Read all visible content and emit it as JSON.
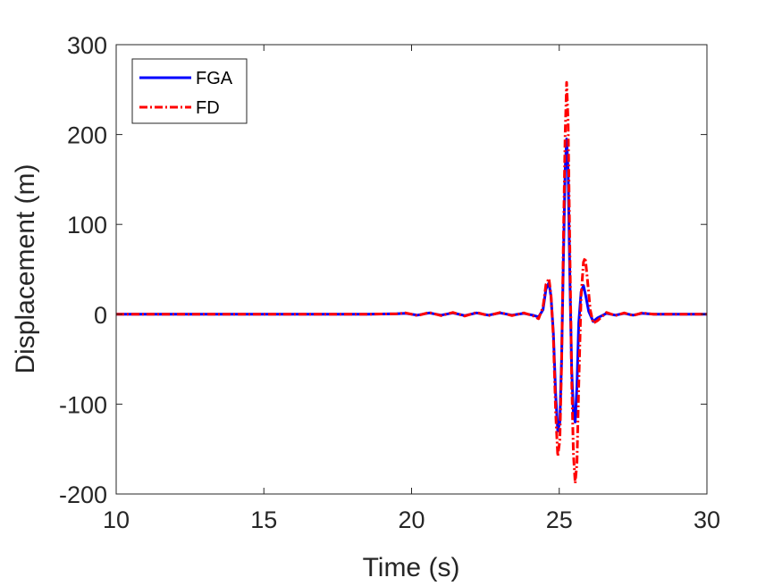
{
  "chart_data": {
    "type": "line",
    "title": "",
    "xlabel": "Time (s)",
    "ylabel": "Displacement (m)",
    "xlim": [
      10,
      30
    ],
    "ylim": [
      -200,
      300
    ],
    "xticks": [
      "10",
      "15",
      "20",
      "25",
      "30"
    ],
    "yticks": [
      "-200",
      "-100",
      "0",
      "100",
      "200",
      "300"
    ],
    "grid": false,
    "legend_position": "top-left",
    "series": [
      {
        "name": "FGA",
        "color": "#0000ff",
        "line_style": "solid",
        "points": [
          [
            10,
            0
          ],
          [
            18.5,
            0
          ],
          [
            19.5,
            0.5
          ],
          [
            19.8,
            1
          ],
          [
            20.2,
            -1
          ],
          [
            20.6,
            1.5
          ],
          [
            21.0,
            -1
          ],
          [
            21.4,
            1.5
          ],
          [
            21.8,
            -1.5
          ],
          [
            22.2,
            1.5
          ],
          [
            22.6,
            -1
          ],
          [
            23.0,
            1.5
          ],
          [
            23.4,
            -1
          ],
          [
            23.8,
            1
          ],
          [
            24.1,
            -1
          ],
          [
            24.3,
            -3
          ],
          [
            24.45,
            5
          ],
          [
            24.55,
            28
          ],
          [
            24.65,
            35
          ],
          [
            24.72,
            20
          ],
          [
            24.8,
            -20
          ],
          [
            24.88,
            -90
          ],
          [
            24.95,
            -130
          ],
          [
            25.02,
            -120
          ],
          [
            25.08,
            -50
          ],
          [
            25.14,
            60
          ],
          [
            25.2,
            160
          ],
          [
            25.25,
            195
          ],
          [
            25.3,
            160
          ],
          [
            25.36,
            40
          ],
          [
            25.42,
            -60
          ],
          [
            25.48,
            -110
          ],
          [
            25.54,
            -120
          ],
          [
            25.6,
            -80
          ],
          [
            25.66,
            -10
          ],
          [
            25.74,
            25
          ],
          [
            25.82,
            32
          ],
          [
            25.9,
            20
          ],
          [
            26.0,
            3
          ],
          [
            26.15,
            -8
          ],
          [
            26.3,
            -4
          ],
          [
            26.6,
            1
          ],
          [
            26.9,
            -1
          ],
          [
            27.2,
            1
          ],
          [
            27.5,
            -1
          ],
          [
            27.8,
            1
          ],
          [
            28.2,
            0
          ],
          [
            30,
            0
          ]
        ]
      },
      {
        "name": "FD",
        "color": "#ff0000",
        "line_style": "dashed",
        "points": [
          [
            10,
            0
          ],
          [
            18.5,
            0
          ],
          [
            19.5,
            0.5
          ],
          [
            19.8,
            1.5
          ],
          [
            20.2,
            -1.5
          ],
          [
            20.6,
            2
          ],
          [
            21.0,
            -1.5
          ],
          [
            21.4,
            2
          ],
          [
            21.8,
            -2
          ],
          [
            22.2,
            2
          ],
          [
            22.6,
            -1.5
          ],
          [
            23.0,
            2
          ],
          [
            23.4,
            -1.5
          ],
          [
            23.8,
            1.5
          ],
          [
            24.1,
            -1.5
          ],
          [
            24.3,
            -5
          ],
          [
            24.45,
            8
          ],
          [
            24.55,
            33
          ],
          [
            24.65,
            40
          ],
          [
            24.72,
            22
          ],
          [
            24.8,
            -25
          ],
          [
            24.88,
            -110
          ],
          [
            24.95,
            -158
          ],
          [
            25.02,
            -140
          ],
          [
            25.08,
            -55
          ],
          [
            25.14,
            80
          ],
          [
            25.2,
            200
          ],
          [
            25.25,
            258
          ],
          [
            25.3,
            215
          ],
          [
            25.36,
            70
          ],
          [
            25.42,
            -70
          ],
          [
            25.48,
            -155
          ],
          [
            25.54,
            -188
          ],
          [
            25.6,
            -165
          ],
          [
            25.66,
            -80
          ],
          [
            25.74,
            20
          ],
          [
            25.82,
            58
          ],
          [
            25.88,
            63
          ],
          [
            25.95,
            40
          ],
          [
            26.05,
            5
          ],
          [
            26.15,
            -10
          ],
          [
            26.3,
            -7
          ],
          [
            26.6,
            2
          ],
          [
            26.9,
            -1.5
          ],
          [
            27.2,
            1.5
          ],
          [
            27.5,
            -1.5
          ],
          [
            27.8,
            1.5
          ],
          [
            28.2,
            0
          ],
          [
            30,
            0
          ]
        ]
      }
    ]
  }
}
